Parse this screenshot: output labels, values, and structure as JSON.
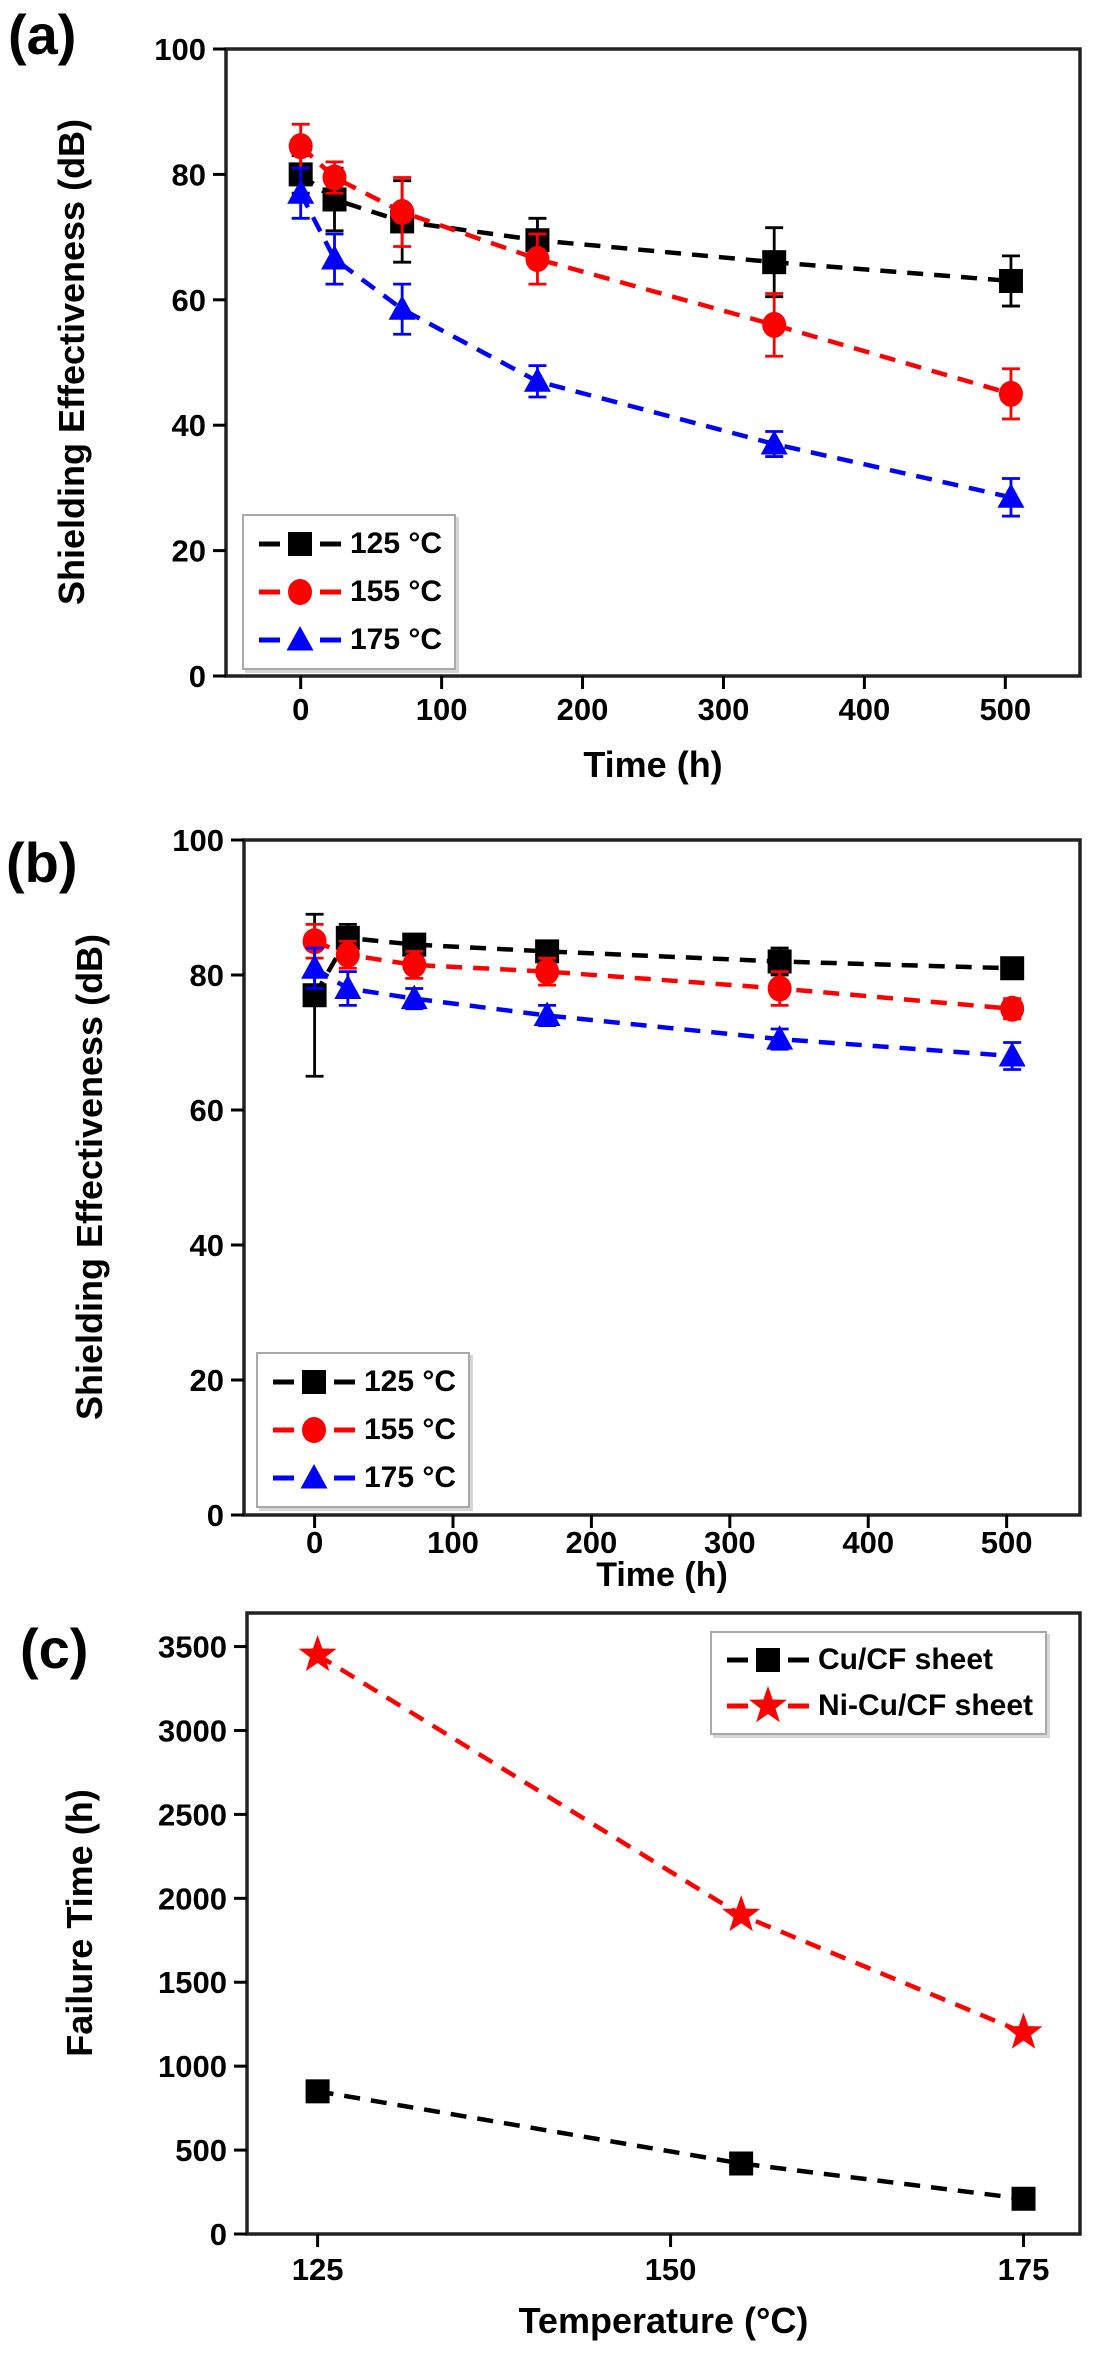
{
  "figure": {
    "background": "#ffffff",
    "text_color": "#000000"
  },
  "chart_data": [
    {
      "id": "a",
      "panel_label": "(a)",
      "type": "line",
      "xlabel": "Time (h)",
      "ylabel": "Shielding Effectiveness (dB)",
      "xlim": [
        -53,
        553
      ],
      "ylim": [
        0,
        100
      ],
      "xticks": [
        0,
        100,
        200,
        300,
        400,
        500
      ],
      "yticks": [
        0,
        20,
        40,
        60,
        80,
        100
      ],
      "grid": false,
      "legend_position": "bottom-left",
      "line_style": "dashed",
      "x": [
        0,
        24,
        72,
        168,
        336,
        504
      ],
      "series": [
        {
          "name": "125 °C",
          "color": "#000000",
          "marker": "square",
          "values": [
            80,
            76,
            72.5,
            69.5,
            66,
            63
          ],
          "errors": [
            3,
            5,
            6.5,
            3.5,
            5.5,
            4
          ]
        },
        {
          "name": "155 °C",
          "color": "#ff0000",
          "marker": "circle",
          "values": [
            84.5,
            79.5,
            74,
            66.5,
            56,
            45
          ],
          "errors": [
            3.5,
            2.5,
            5.5,
            4,
            5,
            4
          ]
        },
        {
          "name": "175 °C",
          "color": "#0000ff",
          "marker": "triangle",
          "values": [
            77,
            66.5,
            58.5,
            47,
            37,
            28.5
          ],
          "errors": [
            4,
            4,
            4,
            2.5,
            2,
            3
          ]
        }
      ]
    },
    {
      "id": "b",
      "panel_label": "(b)",
      "type": "line",
      "xlabel": "Time (h)",
      "ylabel": "Shielding Effectiveness (dB)",
      "xlim": [
        -51,
        553
      ],
      "ylim": [
        0,
        100
      ],
      "xticks": [
        0,
        100,
        200,
        300,
        400,
        500
      ],
      "yticks": [
        0,
        20,
        40,
        60,
        80,
        100
      ],
      "grid": false,
      "legend_position": "bottom-left",
      "line_style": "dashed",
      "x": [
        0,
        24,
        72,
        168,
        336,
        504
      ],
      "series": [
        {
          "name": "125 °C",
          "color": "#000000",
          "marker": "square",
          "values": [
            77,
            85.5,
            84.5,
            83.5,
            82,
            81
          ],
          "errors": [
            12,
            2,
            1.5,
            1.5,
            2,
            1.5
          ]
        },
        {
          "name": "155 °C",
          "color": "#ff0000",
          "marker": "circle",
          "values": [
            85,
            83,
            81.5,
            80.5,
            78,
            75
          ],
          "errors": [
            2.5,
            2,
            2,
            2,
            2.5,
            1.5
          ]
        },
        {
          "name": "175 °C",
          "color": "#0000ff",
          "marker": "triangle",
          "values": [
            81,
            78,
            76.5,
            74,
            70.5,
            68
          ],
          "errors": [
            3,
            2.5,
            1.5,
            1.5,
            1.5,
            2
          ]
        }
      ]
    },
    {
      "id": "c",
      "panel_label": "(c)",
      "type": "line",
      "xlabel": "Temperature (°C)",
      "ylabel": "Failure Time (h)",
      "xlim": [
        120,
        179
      ],
      "ylim": [
        0,
        3700
      ],
      "xticks": [
        125,
        150,
        175
      ],
      "yticks": [
        0,
        500,
        1000,
        1500,
        2000,
        2500,
        3000,
        3500
      ],
      "grid": false,
      "legend_position": "top-right",
      "line_style": "dashed",
      "x": [
        125,
        155,
        175
      ],
      "series": [
        {
          "name": "Cu/CF sheet",
          "color": "#000000",
          "marker": "square",
          "values": [
            850,
            420,
            210
          ]
        },
        {
          "name": "Ni-Cu/CF sheet",
          "color": "#ff0000",
          "marker": "star",
          "values": [
            3450,
            1900,
            1200
          ]
        }
      ]
    }
  ]
}
